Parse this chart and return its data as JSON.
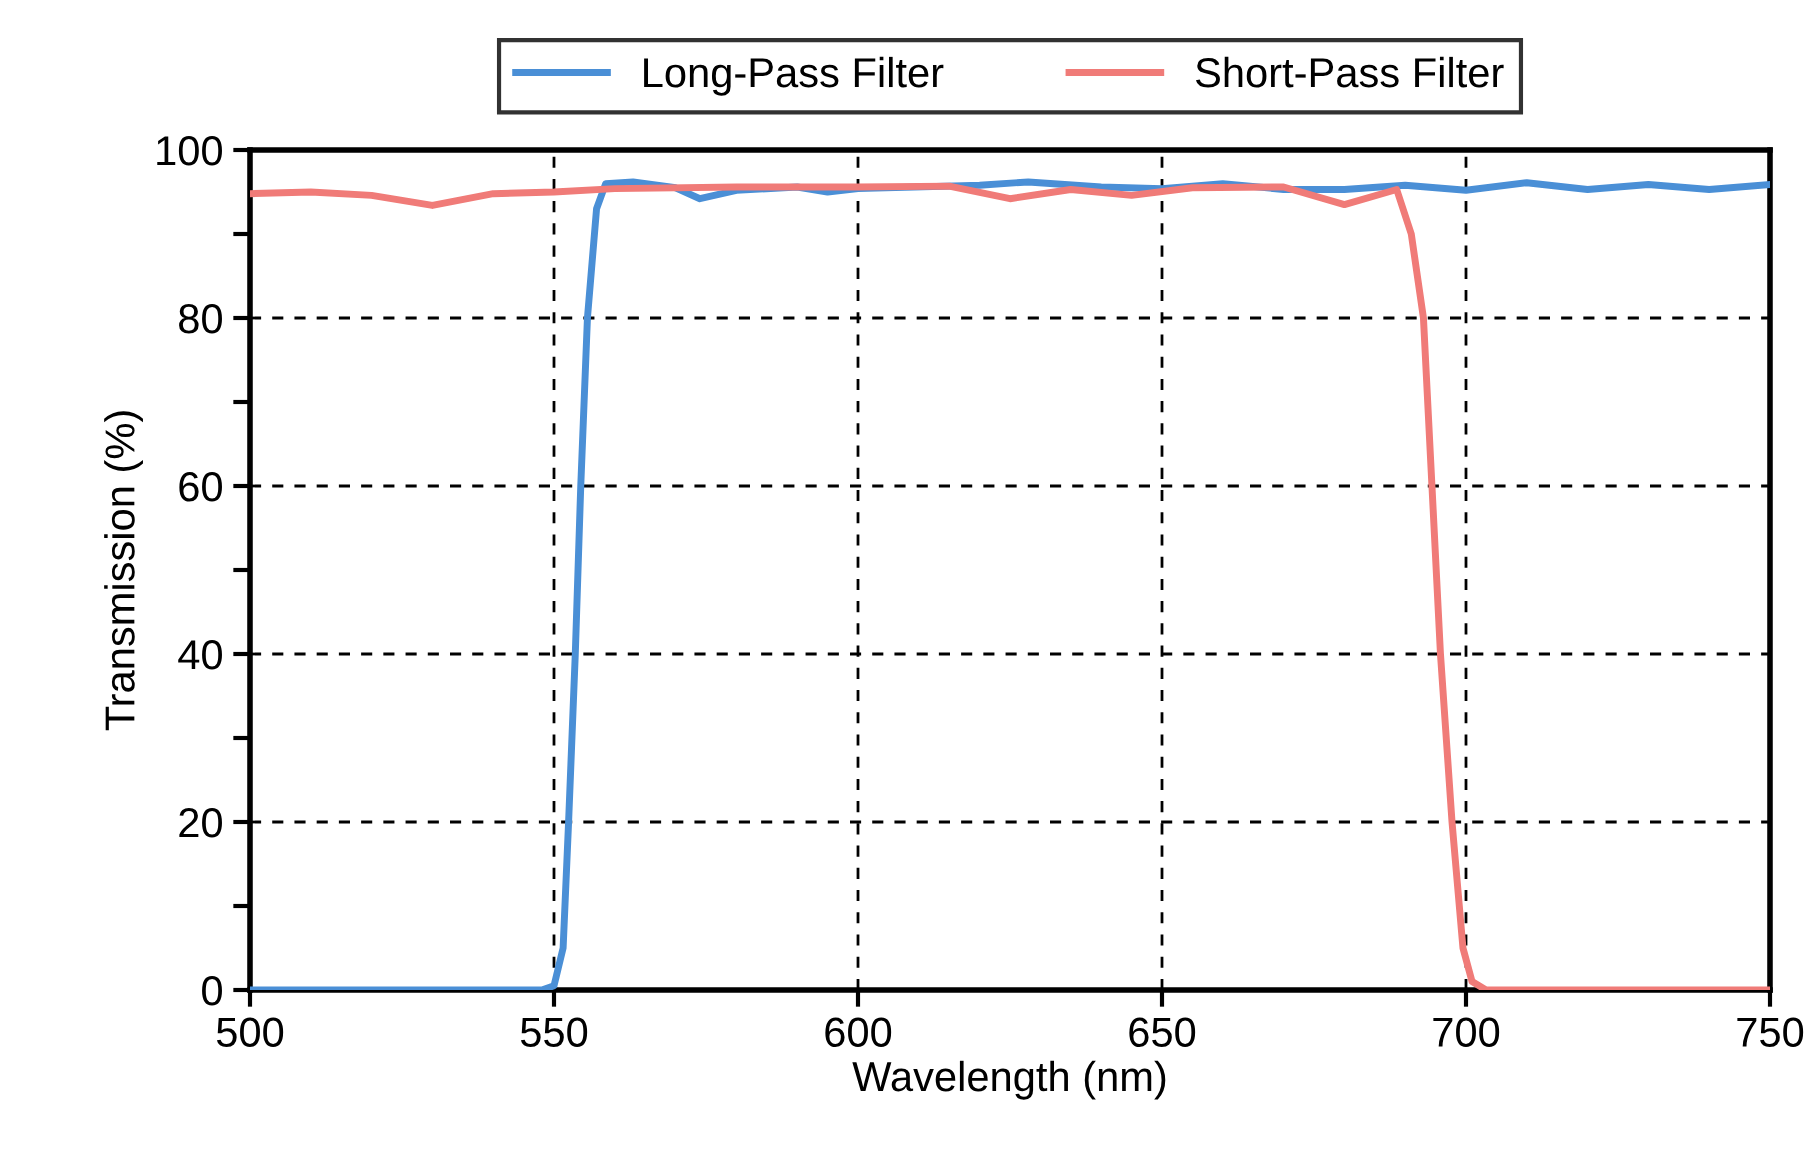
{
  "chart_data": {
    "type": "line",
    "xlabel": "Wavelength (nm)",
    "ylabel": "Transmission (%)",
    "xlim": [
      500,
      750
    ],
    "xticks": [
      500,
      550,
      600,
      650,
      700,
      750
    ],
    "ylim": [
      0,
      100
    ],
    "yticks": [
      0,
      {
        "value": 10,
        "label": null
      },
      20,
      {
        "value": 30,
        "label": null
      },
      40,
      {
        "value": 50,
        "label": null
      },
      60,
      {
        "value": 70,
        "label": null
      },
      80,
      {
        "value": 90,
        "label": null
      },
      100
    ],
    "grid": true,
    "legend": "top",
    "line_style": "solid",
    "marker": "none",
    "series": [
      {
        "name": "Long-Pass Filter",
        "color": "#4a8fd6",
        "x": [
          500,
          520,
          540,
          548,
          550,
          551.5,
          552.4,
          553.5,
          554.4,
          555.5,
          557,
          558.5,
          563,
          570,
          574,
          580,
          590,
          595,
          600,
          620,
          628,
          640,
          650,
          660,
          670,
          680,
          690,
          700,
          710,
          720,
          730,
          740,
          750
        ],
        "values": [
          0,
          0,
          0,
          0,
          0.5,
          5,
          20,
          40,
          60,
          80,
          93,
          96,
          96.2,
          95.5,
          94.2,
          95.2,
          95.6,
          95,
          95.4,
          95.8,
          96.2,
          95.6,
          95.4,
          96,
          95.3,
          95.3,
          95.8,
          95.2,
          96.1,
          95.3,
          95.9,
          95.3,
          95.9
        ]
      },
      {
        "name": "Short-Pass Filter",
        "color": "#f07b78",
        "x": [
          500,
          510,
          520,
          530,
          540,
          550,
          560,
          580,
          600,
          615,
          625,
          635,
          645,
          655,
          670,
          680,
          688.6,
          691,
          693,
          694.4,
          695.8,
          697.7,
          699.5,
          701,
          703.3,
          720,
          750
        ],
        "values": [
          94.8,
          95,
          94.6,
          93.4,
          94.8,
          95,
          95.4,
          95.6,
          95.6,
          95.7,
          94.2,
          95.3,
          94.6,
          95.5,
          95.6,
          93.5,
          95.3,
          90,
          80,
          60,
          40,
          20,
          5,
          1,
          0,
          0,
          0
        ]
      }
    ]
  }
}
